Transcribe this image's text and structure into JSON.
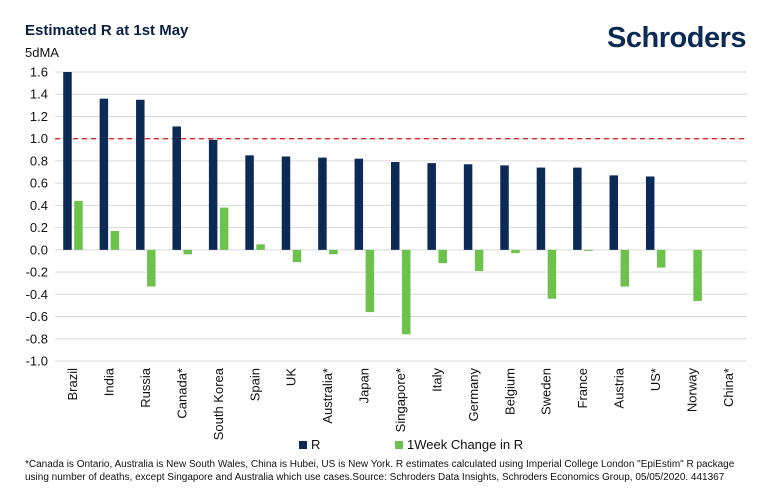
{
  "header": {
    "title": "Estimated R at 1st May",
    "unit_label": "5dMA",
    "logo_text": "Schroders"
  },
  "chart_data": {
    "type": "bar",
    "categories": [
      "Brazil",
      "India",
      "Russia",
      "Canada*",
      "South Korea",
      "Spain",
      "UK",
      "Australia*",
      "Japan",
      "Singapore*",
      "Italy",
      "Germany",
      "Belgium",
      "Sweden",
      "France",
      "Austria",
      "US*",
      "Norway",
      "China*"
    ],
    "series": [
      {
        "name": "R",
        "color": "#0b2a55",
        "values": [
          1.6,
          1.36,
          1.35,
          1.11,
          0.99,
          0.85,
          0.84,
          0.83,
          0.82,
          0.79,
          0.78,
          0.77,
          0.76,
          0.74,
          0.74,
          0.67,
          0.66,
          null,
          null
        ]
      },
      {
        "name": "1Week Change in R",
        "color": "#6cc24a",
        "values": [
          0.44,
          0.17,
          -0.33,
          -0.04,
          0.38,
          0.05,
          -0.11,
          -0.04,
          -0.56,
          -0.76,
          -0.12,
          -0.19,
          -0.03,
          -0.44,
          0.0,
          -0.33,
          -0.16,
          -0.46,
          null
        ]
      }
    ],
    "ylim": [
      -1.0,
      1.6
    ],
    "yticks": [
      "1.6",
      "1.4",
      "1.2",
      "1.0",
      "0.8",
      "0.6",
      "0.4",
      "0.2",
      "0.0",
      "-0.2",
      "-0.4",
      "-0.6",
      "-0.8",
      "-1.0"
    ],
    "reference_line": {
      "value": 1.0,
      "color": "#d62b2b",
      "style": "dashed"
    },
    "grid": "horizontal",
    "legend_position": "bottom"
  },
  "footnote": "*Canada is Ontario, Australia is New South Wales, China is Hubei, US is New York. R estimates calculated using Imperial College London \"EpiEstim\" R package using number of deaths, except Singapore and Australia which use cases.Source: Schroders Data Insights, Schroders Economics Group, 05/05/2020. 441367"
}
